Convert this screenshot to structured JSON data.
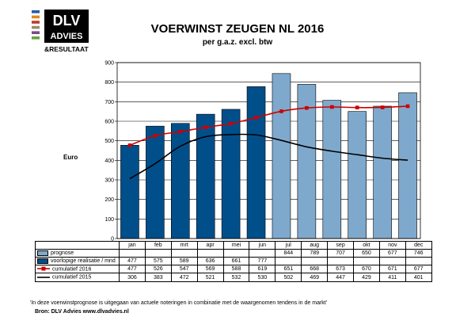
{
  "header": {
    "title": "VOERWINST ZEUGEN NL 2016",
    "subtitle": "per g.a.z. excl. btw"
  },
  "logo": {
    "line1": "DLV",
    "line2": "ADVIES",
    "line3": "&RESULTAAT",
    "stripe_colors": [
      "#1f5fa8",
      "#e2871c",
      "#c0392b",
      "#a08a6b",
      "#7b4a8c",
      "#6aa33b"
    ]
  },
  "colors": {
    "realisatie": "#004f8b",
    "prognose": "#7fa9cc",
    "cum2016": "#cc0000",
    "cum2015": "#000000"
  },
  "chart_data": {
    "type": "bar",
    "categories": [
      "jan",
      "feb",
      "mrt",
      "apr",
      "mei",
      "jun",
      "jul",
      "aug",
      "sep",
      "okt",
      "nov",
      "dec"
    ],
    "ylabel": "Euro",
    "ylim": [
      0,
      900
    ],
    "yticks": [
      0,
      100,
      200,
      300,
      400,
      500,
      600,
      700,
      800,
      900
    ],
    "grid": true,
    "series": [
      {
        "name": "prognose",
        "type": "bar",
        "values": [
          null,
          null,
          null,
          null,
          null,
          null,
          844,
          789,
          707,
          650,
          677,
          746
        ]
      },
      {
        "name": "voorlopige realisatie / mnd",
        "type": "bar",
        "values": [
          477,
          575,
          589,
          636,
          661,
          777,
          null,
          null,
          null,
          null,
          null,
          null
        ]
      },
      {
        "name": "cumulatief 2016",
        "type": "line",
        "values": [
          477,
          526,
          547,
          569,
          588,
          619,
          651,
          668,
          673,
          670,
          671,
          677
        ]
      },
      {
        "name": "cumulatief 2015",
        "type": "line",
        "values": [
          306,
          383,
          472,
          521,
          532,
          530,
          502,
          469,
          447,
          429,
          411,
          401
        ]
      }
    ]
  },
  "footer": {
    "note": "'In deze voerwinstprognose is uitgegaan van actuele noteringen in combinatie met de waargenomen tendens in de markt'",
    "source": "Bron: DLV Advies      www.dlvadvies.nl"
  }
}
